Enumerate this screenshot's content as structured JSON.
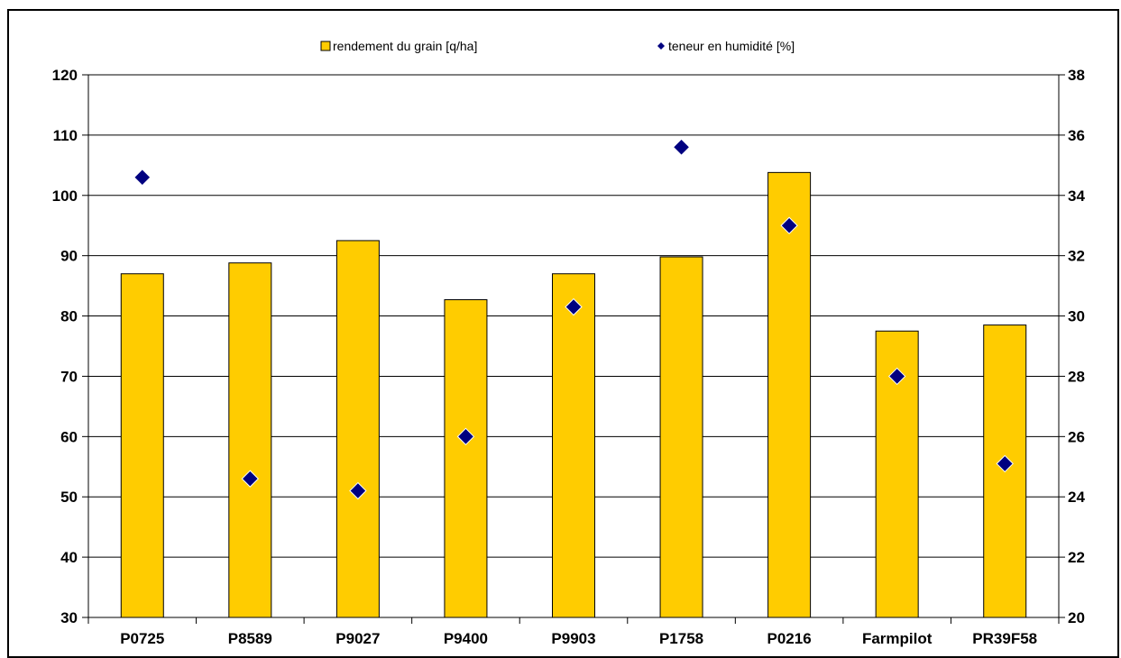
{
  "chart_data": {
    "type": "bar",
    "categories": [
      "P0725",
      "P8589",
      "P9027",
      "P9400",
      "P9903",
      "P1758",
      "P0216",
      "Farmpilot",
      "PR39F58"
    ],
    "series": [
      {
        "name": "rendement du grain [q/ha]",
        "type": "bar",
        "axis": "left",
        "color": "#FFCC00",
        "values": [
          87.0,
          88.8,
          92.5,
          82.7,
          87.0,
          89.8,
          103.8,
          77.5,
          78.5
        ]
      },
      {
        "name": "teneur en humidité [%]",
        "type": "scatter",
        "axis": "right",
        "marker": "diamond",
        "color": "#000080",
        "values": [
          34.6,
          24.6,
          24.2,
          26.0,
          30.3,
          35.6,
          33.0,
          28.0,
          25.1
        ]
      }
    ],
    "y_left": {
      "min": 30,
      "max": 120,
      "step": 10,
      "ticks": [
        "30",
        "40",
        "50",
        "60",
        "70",
        "80",
        "90",
        "100",
        "110",
        "120"
      ]
    },
    "y_right": {
      "min": 20,
      "max": 38,
      "step": 2,
      "ticks": [
        "20",
        "22",
        "24",
        "26",
        "28",
        "30",
        "32",
        "34",
        "36",
        "38"
      ]
    },
    "grid": true,
    "legend_position": "top-center"
  }
}
